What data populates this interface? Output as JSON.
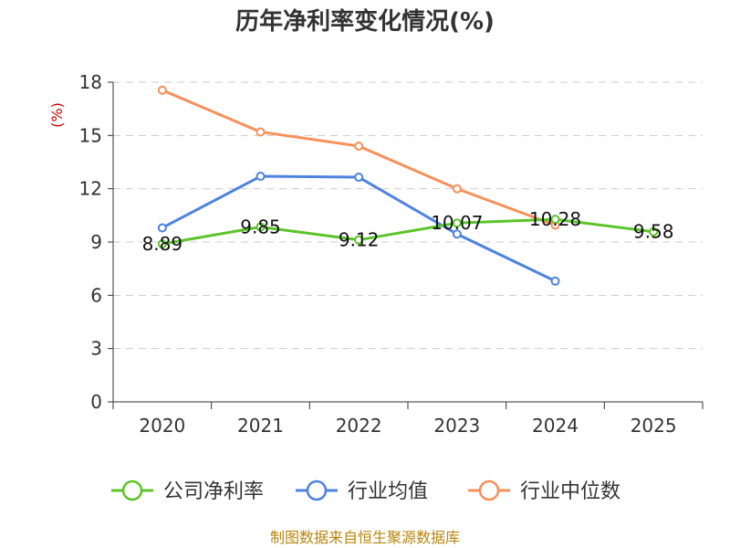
{
  "chart_data": {
    "type": "line",
    "title": "历年净利率变化情况(%)",
    "xlabel": "",
    "ylabel": "(%)",
    "categories": [
      "2020",
      "2021",
      "2022",
      "2023",
      "2024",
      "2025"
    ],
    "ylim": [
      0,
      18
    ],
    "yticks": [
      0,
      3,
      6,
      9,
      12,
      15,
      18
    ],
    "grid": true,
    "legend_position": "bottom",
    "series": [
      {
        "name": "公司净利率",
        "color": "#5cc42a",
        "values": [
          8.89,
          9.85,
          9.12,
          10.07,
          10.28,
          9.58
        ],
        "labels": [
          "8.89",
          "9.85",
          "9.12",
          "10.07",
          "10.28",
          "9.58"
        ]
      },
      {
        "name": "行业均值",
        "color": "#4f82e0",
        "values": [
          9.8,
          12.7,
          12.65,
          9.45,
          6.8,
          null
        ]
      },
      {
        "name": "行业中位数",
        "color": "#f8905a",
        "values": [
          17.55,
          15.2,
          14.4,
          12.0,
          9.95,
          null
        ]
      }
    ]
  },
  "source_text": "制图数据来自恒生聚源数据库"
}
